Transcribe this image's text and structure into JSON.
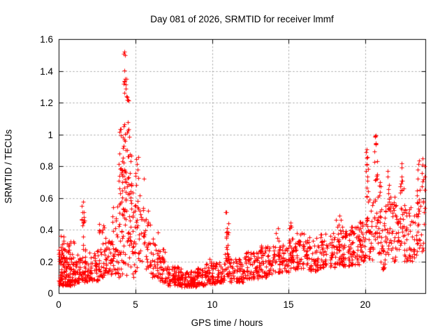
{
  "chart_data": {
    "type": "scatter",
    "title": "Day 081 of 2026, SRMTID for receiver lmmf",
    "xlabel": "GPS time / hours",
    "ylabel": "SRMTID / TECUs",
    "xlim": [
      0,
      23.9
    ],
    "ylim": [
      0,
      1.6
    ],
    "xticks": [
      0,
      5,
      10,
      15,
      20
    ],
    "xtick_labels": [
      "0",
      "5",
      "10",
      "15",
      "20"
    ],
    "yticks": [
      0,
      0.2,
      0.4,
      0.6,
      0.8,
      1.0,
      1.2,
      1.4,
      1.6
    ],
    "ytick_labels": [
      "0",
      "0.2",
      "0.4",
      "0.6",
      "0.8",
      "1",
      "1.2",
      "1.4",
      "1.6"
    ],
    "grid": true,
    "legend": "none",
    "marker": {
      "shape": "plus",
      "size": 7,
      "color": "#ff0000"
    },
    "colors": {
      "background": "#ffffff",
      "axis": "#000000",
      "grid": "#9a9a9a",
      "text": "#000000",
      "series": "#ff0000"
    },
    "series_name": "SRMTID",
    "peak_value": 1.52,
    "peak_time_hours": 4.3,
    "bands_format": "each band = [x_start_hours, x_end_hours, y_min_TECUs, y_max_TECUs, point_count, low_bias_exponent]; points scatter uniformly in x and with density biased toward y_min",
    "bands": [
      [
        0.0,
        0.5,
        0.05,
        0.28,
        70,
        2.0
      ],
      [
        0.5,
        1.0,
        0.05,
        0.33,
        70,
        2.0
      ],
      [
        0.1,
        0.35,
        0.2,
        0.37,
        12,
        1.0
      ],
      [
        1.0,
        1.5,
        0.07,
        0.25,
        45,
        1.8
      ],
      [
        1.5,
        1.75,
        0.15,
        0.61,
        22,
        1.3
      ],
      [
        1.5,
        2.0,
        0.07,
        0.2,
        30,
        1.5
      ],
      [
        2.0,
        2.6,
        0.08,
        0.27,
        45,
        1.6
      ],
      [
        2.6,
        3.0,
        0.1,
        0.45,
        30,
        1.5
      ],
      [
        3.0,
        3.5,
        0.1,
        0.35,
        40,
        1.5
      ],
      [
        3.5,
        3.9,
        0.12,
        0.55,
        35,
        1.4
      ],
      [
        3.9,
        4.2,
        0.25,
        1.05,
        40,
        1.2
      ],
      [
        4.2,
        4.35,
        0.35,
        1.53,
        30,
        1.0
      ],
      [
        4.35,
        4.55,
        0.3,
        1.35,
        30,
        1.1
      ],
      [
        4.55,
        4.8,
        0.3,
        1.0,
        28,
        1.2
      ],
      [
        4.8,
        5.2,
        0.25,
        0.9,
        30,
        1.3
      ],
      [
        3.9,
        5.2,
        0.1,
        0.3,
        25,
        1.3
      ],
      [
        5.2,
        5.6,
        0.2,
        0.75,
        25,
        1.4
      ],
      [
        5.6,
        6.0,
        0.15,
        0.55,
        25,
        1.5
      ],
      [
        6.0,
        6.5,
        0.1,
        0.4,
        30,
        1.6
      ],
      [
        6.5,
        7.0,
        0.07,
        0.28,
        35,
        1.7
      ],
      [
        7.0,
        8.0,
        0.05,
        0.17,
        80,
        1.5
      ],
      [
        8.0,
        9.0,
        0.04,
        0.14,
        85,
        1.4
      ],
      [
        9.0,
        9.6,
        0.05,
        0.16,
        50,
        1.4
      ],
      [
        9.6,
        10.3,
        0.06,
        0.22,
        55,
        1.5
      ],
      [
        10.3,
        10.85,
        0.07,
        0.2,
        40,
        1.4
      ],
      [
        10.85,
        11.05,
        0.2,
        0.53,
        20,
        1.1
      ],
      [
        10.9,
        11.1,
        0.1,
        0.25,
        10,
        1.0
      ],
      [
        11.05,
        12.0,
        0.07,
        0.22,
        65,
        1.5
      ],
      [
        12.0,
        13.0,
        0.09,
        0.26,
        70,
        1.5
      ],
      [
        13.0,
        13.6,
        0.1,
        0.3,
        45,
        1.4
      ],
      [
        13.6,
        14.0,
        0.12,
        0.3,
        30,
        1.4
      ],
      [
        14.0,
        14.4,
        0.13,
        0.42,
        30,
        1.4
      ],
      [
        14.4,
        15.0,
        0.13,
        0.32,
        40,
        1.4
      ],
      [
        15.0,
        15.4,
        0.15,
        0.48,
        35,
        1.4
      ],
      [
        15.4,
        16.0,
        0.15,
        0.38,
        40,
        1.4
      ],
      [
        16.0,
        17.0,
        0.14,
        0.35,
        65,
        1.4
      ],
      [
        17.0,
        18.0,
        0.16,
        0.38,
        65,
        1.4
      ],
      [
        18.0,
        18.5,
        0.18,
        0.5,
        40,
        1.3
      ],
      [
        18.5,
        19.0,
        0.17,
        0.4,
        40,
        1.4
      ],
      [
        19.0,
        19.6,
        0.18,
        0.42,
        45,
        1.3
      ],
      [
        19.6,
        20.0,
        0.2,
        0.47,
        35,
        1.2
      ],
      [
        20.0,
        20.2,
        0.3,
        0.93,
        25,
        1.1
      ],
      [
        20.2,
        20.5,
        0.2,
        0.6,
        25,
        1.3
      ],
      [
        20.55,
        20.8,
        0.3,
        1.01,
        30,
        1.0
      ],
      [
        20.8,
        21.0,
        0.25,
        0.7,
        20,
        1.2
      ],
      [
        21.0,
        21.25,
        0.15,
        0.55,
        22,
        1.3
      ],
      [
        21.25,
        21.6,
        0.2,
        0.78,
        28,
        1.2
      ],
      [
        21.6,
        22.0,
        0.2,
        0.62,
        30,
        1.3
      ],
      [
        22.0,
        22.2,
        0.25,
        0.55,
        15,
        1.2
      ],
      [
        22.2,
        22.5,
        0.28,
        0.86,
        28,
        1.1
      ],
      [
        22.5,
        23.0,
        0.2,
        0.6,
        35,
        1.3
      ],
      [
        23.0,
        23.35,
        0.2,
        0.5,
        20,
        1.3
      ],
      [
        23.35,
        23.88,
        0.25,
        0.86,
        45,
        1.1
      ]
    ]
  }
}
